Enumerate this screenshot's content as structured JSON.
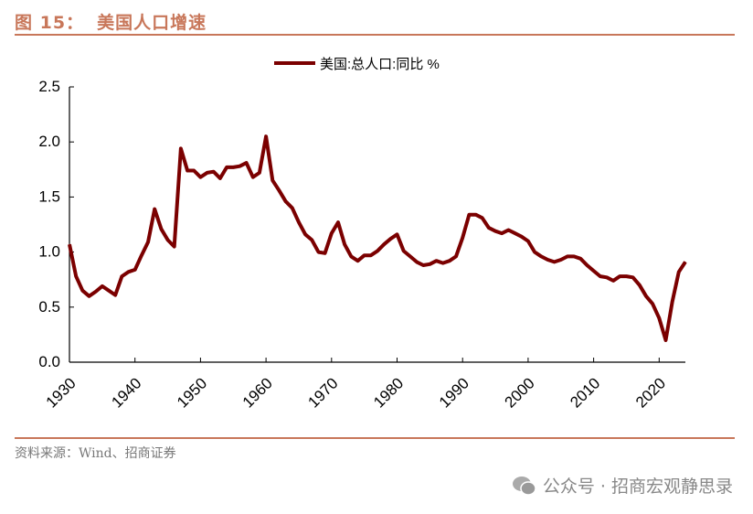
{
  "header": {
    "figure_no": "图 15：",
    "title": "美国人口增速"
  },
  "footer": {
    "source": "资料来源：Wind、招商证券",
    "watermark": "公众号 · 招商宏观静思录",
    "watermark_icon": "wechat-icon"
  },
  "colors": {
    "line": "#7b0000",
    "accent": "#c8775a"
  },
  "chart_data": {
    "type": "line",
    "title": "",
    "xlabel": "",
    "ylabel": "",
    "xlim": [
      1930,
      2024
    ],
    "ylim": [
      0,
      2.5
    ],
    "x_ticks": [
      "1930",
      "1940",
      "1950",
      "1960",
      "1970",
      "1980",
      "1990",
      "2000",
      "2010",
      "2020"
    ],
    "y_ticks": [
      "0.0",
      "0.5",
      "1.0",
      "1.5",
      "2.0",
      "2.5"
    ],
    "legend": "top-center",
    "grid": false,
    "series": [
      {
        "name": "美国:总人口:同比 %",
        "x": [
          1930,
          1931,
          1932,
          1933,
          1934,
          1935,
          1936,
          1937,
          1938,
          1939,
          1940,
          1941,
          1942,
          1943,
          1944,
          1945,
          1946,
          1947,
          1948,
          1949,
          1950,
          1951,
          1952,
          1953,
          1954,
          1955,
          1956,
          1957,
          1958,
          1959,
          1960,
          1961,
          1962,
          1963,
          1964,
          1965,
          1966,
          1967,
          1968,
          1969,
          1970,
          1971,
          1972,
          1973,
          1974,
          1975,
          1976,
          1977,
          1978,
          1979,
          1980,
          1981,
          1982,
          1983,
          1984,
          1985,
          1986,
          1987,
          1988,
          1989,
          1990,
          1991,
          1992,
          1993,
          1994,
          1995,
          1996,
          1997,
          1998,
          1999,
          2000,
          2001,
          2002,
          2003,
          2004,
          2005,
          2006,
          2007,
          2008,
          2009,
          2010,
          2011,
          2012,
          2013,
          2014,
          2015,
          2016,
          2017,
          2018,
          2019,
          2020,
          2021,
          2022,
          2023,
          2024
        ],
        "values": [
          1.07,
          0.78,
          0.65,
          0.6,
          0.64,
          0.69,
          0.65,
          0.61,
          0.78,
          0.82,
          0.84,
          0.97,
          1.09,
          1.39,
          1.21,
          1.11,
          1.05,
          1.94,
          1.74,
          1.74,
          1.68,
          1.72,
          1.73,
          1.67,
          1.77,
          1.77,
          1.78,
          1.81,
          1.68,
          1.72,
          2.05,
          1.65,
          1.56,
          1.46,
          1.4,
          1.27,
          1.16,
          1.11,
          1.0,
          0.99,
          1.17,
          1.27,
          1.07,
          0.96,
          0.92,
          0.97,
          0.97,
          1.01,
          1.07,
          1.12,
          1.16,
          1.01,
          0.96,
          0.91,
          0.88,
          0.89,
          0.92,
          0.9,
          0.92,
          0.96,
          1.13,
          1.34,
          1.34,
          1.31,
          1.22,
          1.19,
          1.17,
          1.2,
          1.17,
          1.14,
          1.1,
          1.0,
          0.96,
          0.93,
          0.91,
          0.93,
          0.96,
          0.96,
          0.94,
          0.88,
          0.83,
          0.78,
          0.77,
          0.74,
          0.78,
          0.78,
          0.77,
          0.7,
          0.6,
          0.53,
          0.4,
          0.2,
          0.55,
          0.82,
          0.91
        ]
      }
    ]
  }
}
